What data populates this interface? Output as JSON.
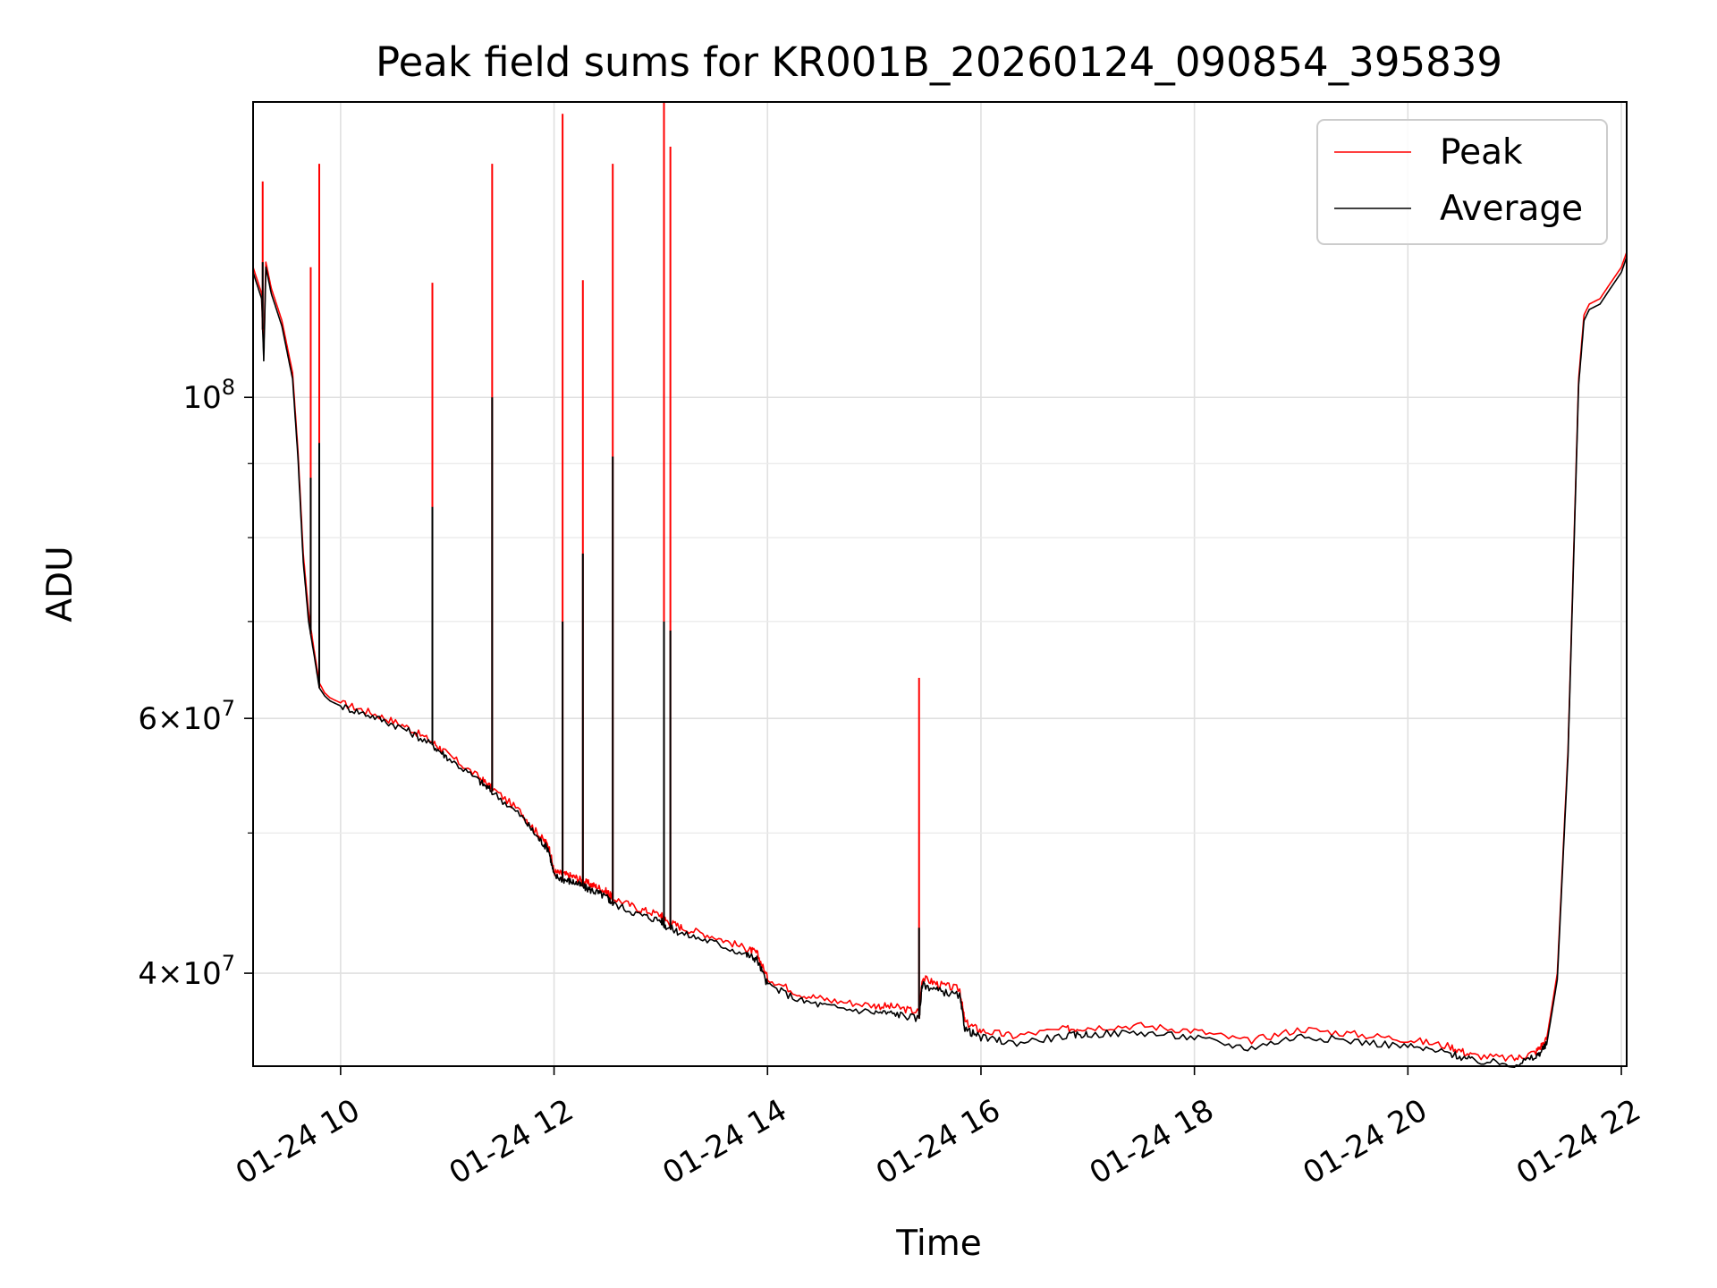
{
  "chart_data": {
    "type": "line",
    "title": "Peak field sums for KR001B_20260124_090854_395839",
    "xlabel": "Time",
    "ylabel": "ADU",
    "yscale": "log",
    "xlim": [
      9.18,
      22.05
    ],
    "ylim": [
      34500000,
      160000000
    ],
    "grid": true,
    "legend_position": "top-right",
    "x_ticks": [
      {
        "value": 10,
        "label": "01-24 10"
      },
      {
        "value": 12,
        "label": "01-24 12"
      },
      {
        "value": 14,
        "label": "01-24 14"
      },
      {
        "value": 16,
        "label": "01-24 16"
      },
      {
        "value": 18,
        "label": "01-24 18"
      },
      {
        "value": 20,
        "label": "01-24 20"
      },
      {
        "value": 22,
        "label": "01-24 22"
      }
    ],
    "y_ticks": [
      {
        "value": 40000000,
        "base": "4",
        "exp": "7",
        "times": true
      },
      {
        "value": 60000000,
        "base": "6",
        "exp": "7",
        "times": true
      },
      {
        "value": 100000000,
        "base": "10",
        "exp": "8",
        "times": false
      }
    ],
    "y_minor_ticks": [
      50000000,
      70000000,
      80000000,
      90000000
    ],
    "series": [
      {
        "name": "Peak",
        "color": "#ff0000",
        "x": [
          9.18,
          9.26,
          9.28,
          9.3,
          9.35,
          9.45,
          9.55,
          9.6,
          9.65,
          9.7,
          9.75,
          9.8,
          9.85,
          9.9,
          10.0,
          10.3,
          10.6,
          10.86,
          11.0,
          11.3,
          11.42,
          11.7,
          11.85,
          11.95,
          12.0,
          12.1,
          12.2,
          12.3,
          12.4,
          12.5,
          12.55,
          12.8,
          13.0,
          13.05,
          13.2,
          13.5,
          13.8,
          13.9,
          14.0,
          14.3,
          14.6,
          15.0,
          15.2,
          15.42,
          15.45,
          15.6,
          15.8,
          15.85,
          16.0,
          16.3,
          16.8,
          17.0,
          17.5,
          18.0,
          18.5,
          19.0,
          19.5,
          20.0,
          20.4,
          20.6,
          21.0,
          21.2,
          21.3,
          21.4,
          21.5,
          21.6,
          21.65,
          21.7,
          21.8,
          21.9,
          22.0,
          22.05
        ],
        "y": [
          123000000,
          118000000,
          108000000,
          124000000,
          119000000,
          113000000,
          104000000,
          92000000,
          78000000,
          71000000,
          67000000,
          63500000,
          62500000,
          62000000,
          61500000,
          60500000,
          59300000,
          57800000,
          56700000,
          54600000,
          53700000,
          51600000,
          49900000,
          49000000,
          47000000,
          46800000,
          46600000,
          46200000,
          45900000,
          45500000,
          45100000,
          44300000,
          43900000,
          43500000,
          43000000,
          42400000,
          41600000,
          41300000,
          39700000,
          38700000,
          38300000,
          38000000,
          37900000,
          37600000,
          39700000,
          39300000,
          39000000,
          37000000,
          36500000,
          36200000,
          36600000,
          36700000,
          36800000,
          36500000,
          35900000,
          36600000,
          36300000,
          36000000,
          35600000,
          35100000,
          34900000,
          35300000,
          36000000,
          40000000,
          57000000,
          103000000,
          114000000,
          116000000,
          117000000,
          120000000,
          123000000,
          126000000
        ]
      },
      {
        "name": "Average",
        "color": "#000000",
        "x": [
          9.18,
          9.26,
          9.28,
          9.3,
          9.35,
          9.45,
          9.55,
          9.6,
          9.65,
          9.7,
          9.75,
          9.8,
          9.85,
          9.9,
          10.0,
          10.3,
          10.6,
          10.86,
          11.0,
          11.3,
          11.42,
          11.7,
          11.85,
          11.95,
          12.0,
          12.1,
          12.2,
          12.3,
          12.4,
          12.5,
          12.55,
          12.8,
          13.0,
          13.05,
          13.2,
          13.5,
          13.8,
          13.9,
          14.0,
          14.3,
          14.6,
          15.0,
          15.2,
          15.42,
          15.45,
          15.6,
          15.8,
          15.85,
          16.0,
          16.3,
          16.8,
          17.0,
          17.5,
          18.0,
          18.5,
          19.0,
          19.5,
          20.0,
          20.4,
          20.6,
          21.0,
          21.2,
          21.3,
          21.4,
          21.5,
          21.6,
          21.65,
          21.7,
          21.8,
          21.9,
          22.0,
          22.05
        ],
        "y": [
          122000000,
          117000000,
          106000000,
          123000000,
          118000000,
          112000000,
          103000000,
          91000000,
          77000000,
          70000000,
          66500000,
          63000000,
          62200000,
          61700000,
          61200000,
          60200000,
          59000000,
          57500000,
          56400000,
          54300000,
          53400000,
          51300000,
          49600000,
          48700000,
          46700000,
          46400000,
          46200000,
          45800000,
          45500000,
          45100000,
          44700000,
          43900000,
          43500000,
          43100000,
          42600000,
          42000000,
          41200000,
          40900000,
          39300000,
          38300000,
          37900000,
          37600000,
          37500000,
          37200000,
          39300000,
          38900000,
          38600000,
          36600000,
          36100000,
          35800000,
          36200000,
          36300000,
          36400000,
          36100000,
          35500000,
          36200000,
          35900000,
          35600000,
          35200000,
          34800000,
          34600000,
          35000000,
          35700000,
          39600000,
          56500000,
          102000000,
          113000000,
          115000000,
          116000000,
          119000000,
          122000000,
          125000000
        ]
      }
    ],
    "spikes": [
      {
        "x": 9.27,
        "peak": 141000000,
        "average": 124000000
      },
      {
        "x": 9.72,
        "peak": 123000000,
        "average": 88000000
      },
      {
        "x": 9.8,
        "peak": 145000000,
        "average": 93000000
      },
      {
        "x": 10.86,
        "peak": 120000000,
        "average": 84000000
      },
      {
        "x": 11.42,
        "peak": 145000000,
        "average": 100000000
      },
      {
        "x": 12.08,
        "peak": 157000000,
        "average": 70000000
      },
      {
        "x": 12.27,
        "peak": 120500000,
        "average": 78000000
      },
      {
        "x": 12.55,
        "peak": 145000000,
        "average": 91000000
      },
      {
        "x": 13.03,
        "peak": 160000000,
        "average": 70000000
      },
      {
        "x": 13.09,
        "peak": 149000000,
        "average": 69000000
      },
      {
        "x": 15.42,
        "peak": 64000000,
        "average": 43000000
      }
    ]
  }
}
